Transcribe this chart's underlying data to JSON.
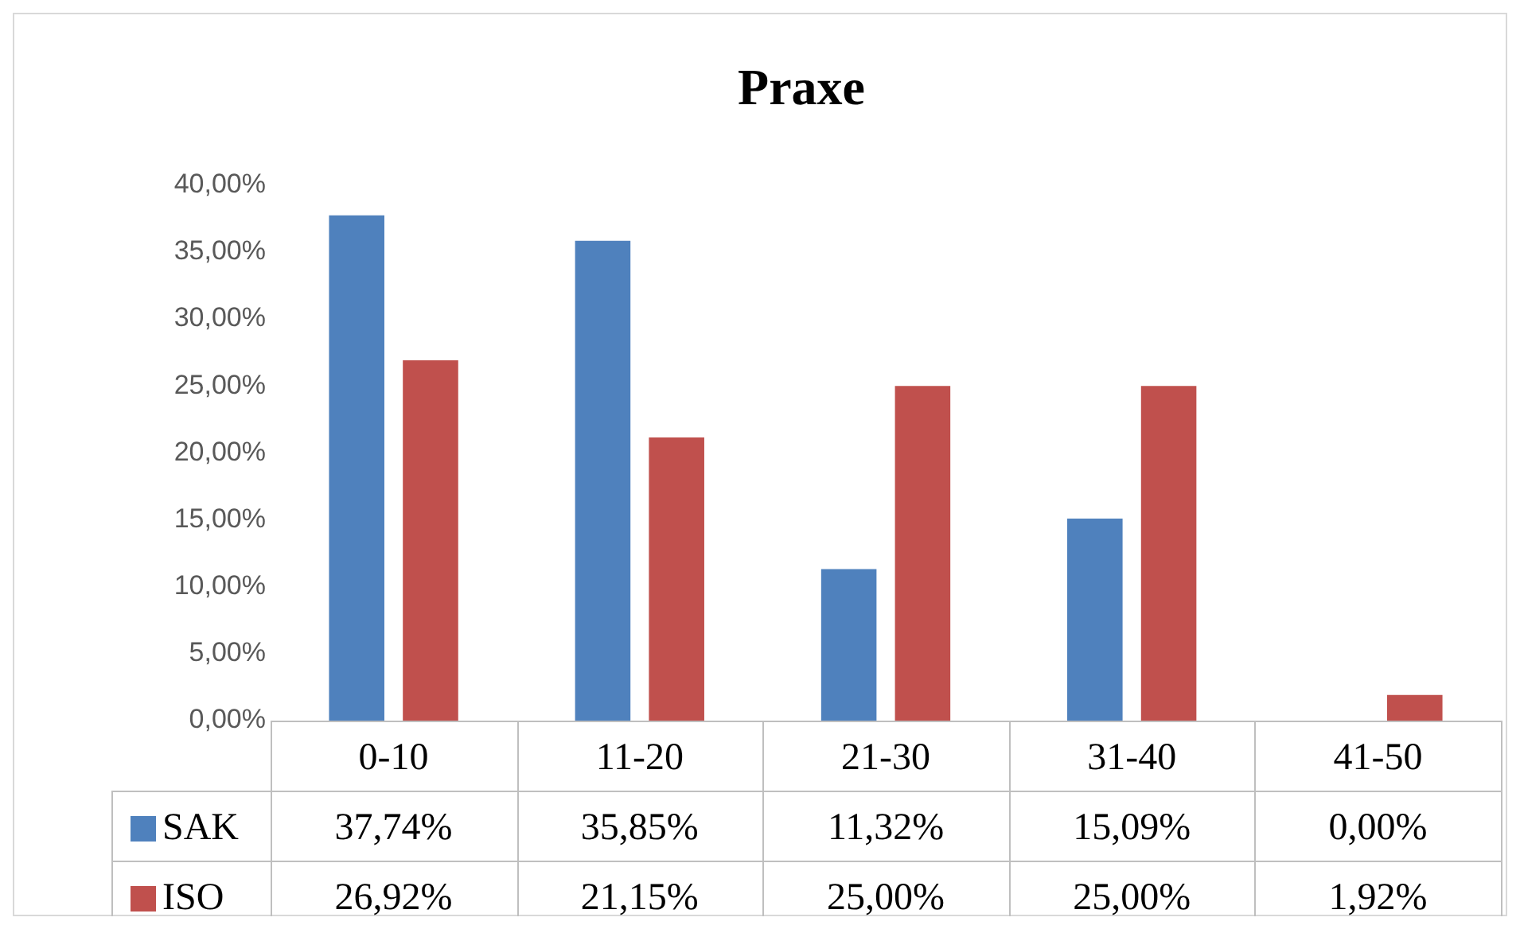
{
  "chart_data": {
    "type": "bar",
    "title": "Praxe",
    "categories": [
      "0-10",
      "11-20",
      "21-30",
      "31-40",
      "41-50"
    ],
    "series": [
      {
        "name": "SAK",
        "color": "#4f81bd",
        "values": [
          37.74,
          35.85,
          11.32,
          15.09,
          0
        ],
        "value_labels": [
          "37,74%",
          "35,85%",
          "11,32%",
          "15,09%",
          "0,00%"
        ]
      },
      {
        "name": "ISO",
        "color": "#c0504d",
        "values": [
          26.92,
          21.15,
          25,
          25,
          1.92
        ],
        "value_labels": [
          "26,92%",
          "21,15%",
          "25,00%",
          "25,00%",
          "1,92%"
        ]
      }
    ],
    "ylim": [
      0,
      40
    ],
    "yticks": [
      {
        "value": 0,
        "label": "0,00%"
      },
      {
        "value": 5,
        "label": "5,00%"
      },
      {
        "value": 10,
        "label": "10,00%"
      },
      {
        "value": 15,
        "label": "15,00%"
      },
      {
        "value": 20,
        "label": "20,00%"
      },
      {
        "value": 25,
        "label": "25,00%"
      },
      {
        "value": 30,
        "label": "30,00%"
      },
      {
        "value": 35,
        "label": "35,00%"
      },
      {
        "value": 40,
        "label": "40,00%"
      }
    ],
    "grid": false,
    "legend": "bottom left"
  }
}
